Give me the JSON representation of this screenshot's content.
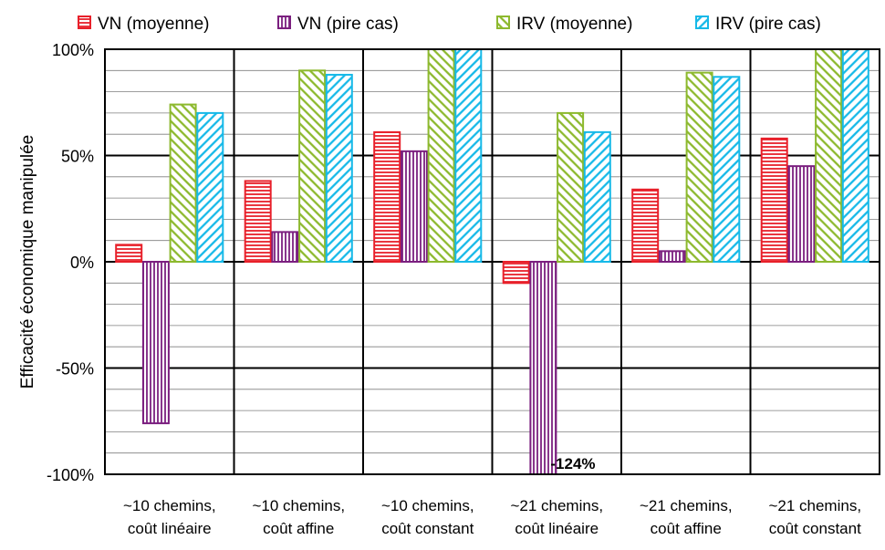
{
  "chart_data": {
    "type": "bar",
    "title": "",
    "ylabel": "Efficacité économique manipulée",
    "ylim": [
      -100,
      100
    ],
    "yticks": [
      -100,
      -50,
      0,
      50,
      100
    ],
    "ytick_labels": [
      "-100%",
      "-50%",
      "0%",
      "50%",
      "100%"
    ],
    "grid": true,
    "legend_position": "top",
    "categories": [
      [
        "~10 chemins,",
        "coût linéaire"
      ],
      [
        "~10 chemins,",
        "coût affine"
      ],
      [
        "~10 chemins,",
        "coût constant"
      ],
      [
        "~21 chemins,",
        "coût linéaire"
      ],
      [
        "~21 chemins,",
        "coût affine"
      ],
      [
        "~21 chemins,",
        "coût constant"
      ]
    ],
    "series": [
      {
        "name": "VN (moyenne)",
        "color": "#e8202a",
        "pattern": "hlines",
        "values": [
          8,
          38,
          61,
          -10,
          34,
          58
        ]
      },
      {
        "name": "VN (pire cas)",
        "color": "#7b1f7f",
        "pattern": "vlines",
        "values": [
          -76,
          14,
          52,
          -124,
          5,
          45
        ]
      },
      {
        "name": "IRV (moyenne)",
        "color": "#8db92e",
        "pattern": "diag",
        "values": [
          74,
          90,
          100,
          70,
          89,
          100
        ]
      },
      {
        "name": "IRV (pire cas)",
        "color": "#16b9e8",
        "pattern": "diag",
        "values": [
          70,
          88,
          100,
          61,
          87,
          100
        ]
      }
    ],
    "annotations": [
      {
        "text": "-124%",
        "category_index": 3,
        "series_index": 1
      }
    ]
  }
}
